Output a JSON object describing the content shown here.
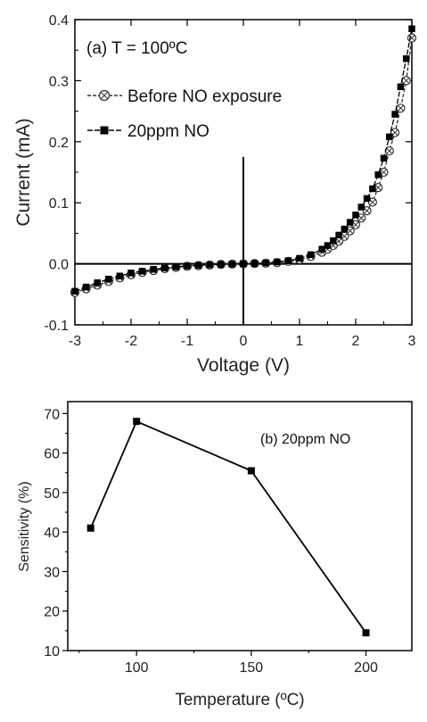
{
  "chart_data": [
    {
      "type": "scatter",
      "panel_label": "(a) T = 100ºC",
      "xlabel": "Voltage (V)",
      "ylabel": "Current (mA)",
      "xlim": [
        -3,
        3
      ],
      "ylim": [
        -0.1,
        0.4
      ],
      "xticks": [
        "-3",
        "-2",
        "-1",
        "0",
        "1",
        "2",
        "3"
      ],
      "yticks": [
        "-0.1",
        "0.0",
        "0.1",
        "0.2",
        "0.3",
        "0.4"
      ],
      "legend_position": "upper-left",
      "series": [
        {
          "name": "Before NO exposure",
          "marker": "crossed-circle",
          "color": "#333333",
          "x": [
            -3.0,
            -2.8,
            -2.6,
            -2.4,
            -2.2,
            -2.0,
            -1.8,
            -1.6,
            -1.4,
            -1.2,
            -1.0,
            -0.8,
            -0.6,
            -0.4,
            -0.2,
            0.0,
            0.2,
            0.4,
            0.6,
            0.8,
            1.0,
            1.2,
            1.4,
            1.5,
            1.6,
            1.7,
            1.8,
            1.9,
            2.0,
            2.1,
            2.2,
            2.3,
            2.4,
            2.5,
            2.6,
            2.7,
            2.8,
            2.9,
            3.0
          ],
          "y": [
            -0.047,
            -0.041,
            -0.035,
            -0.029,
            -0.023,
            -0.018,
            -0.014,
            -0.011,
            -0.008,
            -0.006,
            -0.004,
            -0.003,
            -0.002,
            -0.001,
            -0.0005,
            0.0,
            0.0005,
            0.001,
            0.002,
            0.004,
            0.007,
            0.012,
            0.019,
            0.024,
            0.03,
            0.037,
            0.045,
            0.054,
            0.064,
            0.075,
            0.087,
            0.101,
            0.125,
            0.15,
            0.185,
            0.215,
            0.255,
            0.3,
            0.37
          ]
        },
        {
          "name": "20ppm NO",
          "marker": "filled-square",
          "color": "#000000",
          "x": [
            -3.0,
            -2.8,
            -2.6,
            -2.4,
            -2.2,
            -2.0,
            -1.8,
            -1.6,
            -1.4,
            -1.2,
            -1.0,
            -0.8,
            -0.6,
            -0.4,
            -0.2,
            0.0,
            0.2,
            0.4,
            0.6,
            0.8,
            1.0,
            1.2,
            1.4,
            1.5,
            1.6,
            1.7,
            1.8,
            1.9,
            2.0,
            2.1,
            2.2,
            2.3,
            2.4,
            2.5,
            2.6,
            2.7,
            2.8,
            2.9,
            3.0
          ],
          "y": [
            -0.045,
            -0.038,
            -0.031,
            -0.025,
            -0.02,
            -0.015,
            -0.012,
            -0.009,
            -0.007,
            -0.005,
            -0.0035,
            -0.0025,
            -0.0015,
            -0.001,
            -0.0005,
            0.0,
            0.0005,
            0.0015,
            0.003,
            0.005,
            0.009,
            0.015,
            0.024,
            0.03,
            0.038,
            0.047,
            0.057,
            0.068,
            0.08,
            0.093,
            0.107,
            0.123,
            0.146,
            0.173,
            0.208,
            0.245,
            0.29,
            0.336,
            0.385
          ]
        }
      ]
    },
    {
      "type": "line",
      "panel_label": "(b) 20ppm NO",
      "xlabel": "Temperature (ºC)",
      "ylabel": "Sensitivity (%)",
      "xlim": [
        70,
        220
      ],
      "ylim": [
        10,
        73
      ],
      "xticks": [
        "100",
        "150",
        "200"
      ],
      "yticks": [
        "10",
        "20",
        "30",
        "40",
        "50",
        "60",
        "70"
      ],
      "marker": "filled-square",
      "x": [
        80,
        100,
        150,
        200
      ],
      "y": [
        41,
        68,
        55.5,
        14.5
      ]
    }
  ]
}
